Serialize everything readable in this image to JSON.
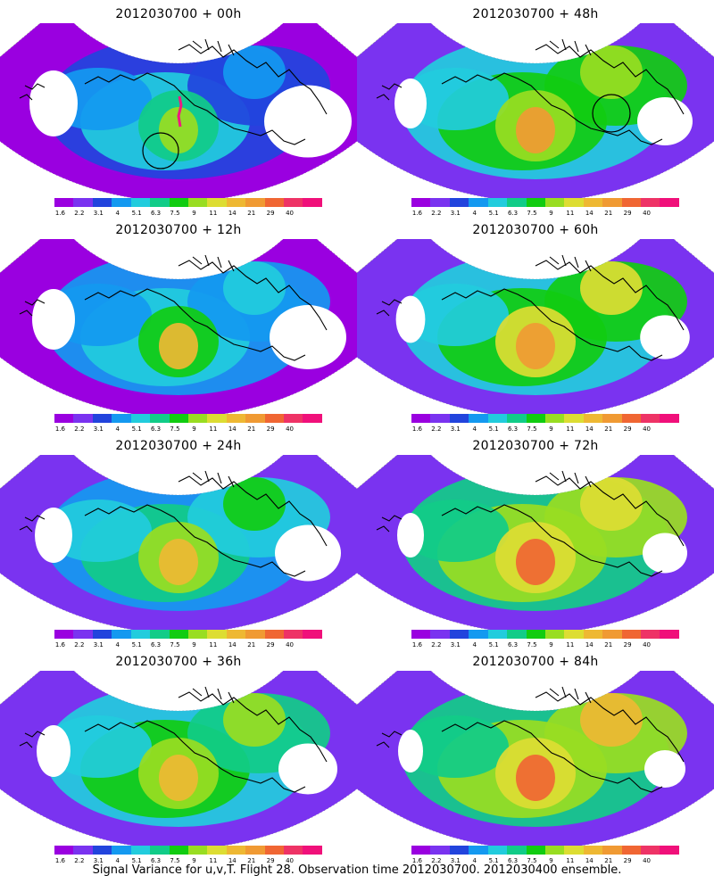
{
  "colorbar": {
    "colors": [
      "#9a00e0",
      "#7a33f0",
      "#2244dd",
      "#1499f0",
      "#22ccdd",
      "#11cc88",
      "#11cc11",
      "#99dd22",
      "#dddd33",
      "#eeb833",
      "#f09a33",
      "#f06633",
      "#ee3366",
      "#f0107a"
    ],
    "labels": [
      "1.6",
      "2.2",
      "3.1",
      "4",
      "5.1",
      "6.3",
      "7.5",
      "9",
      "11",
      "14",
      "21",
      "29",
      "40"
    ]
  },
  "panels": [
    {
      "title": "2012030700 + 00h",
      "level": 0.15,
      "hot": 0.55,
      "circle": true,
      "track": true
    },
    {
      "title": "2012030700 + 12h",
      "level": 0.3,
      "hot": 0.65,
      "circle": false,
      "track": false
    },
    {
      "title": "2012030700 + 24h",
      "level": 0.45,
      "hot": 0.65,
      "circle": false,
      "track": false
    },
    {
      "title": "2012030700 + 36h",
      "level": 0.55,
      "hot": 0.7,
      "circle": false,
      "track": false
    },
    {
      "title": "2012030700 + 48h",
      "level": 0.6,
      "hot": 0.72,
      "circle": true,
      "track": false
    },
    {
      "title": "2012030700 + 60h",
      "level": 0.68,
      "hot": 0.78,
      "circle": false,
      "track": false
    },
    {
      "title": "2012030700 + 72h",
      "level": 0.75,
      "hot": 0.82,
      "circle": false,
      "track": false
    },
    {
      "title": "2012030700 + 84h",
      "level": 0.8,
      "hot": 0.85,
      "circle": false,
      "track": false
    }
  ],
  "footer": "Signal Variance for u,v,T. Flight 28. Observation time 2012030700. 2012030400 ensemble."
}
